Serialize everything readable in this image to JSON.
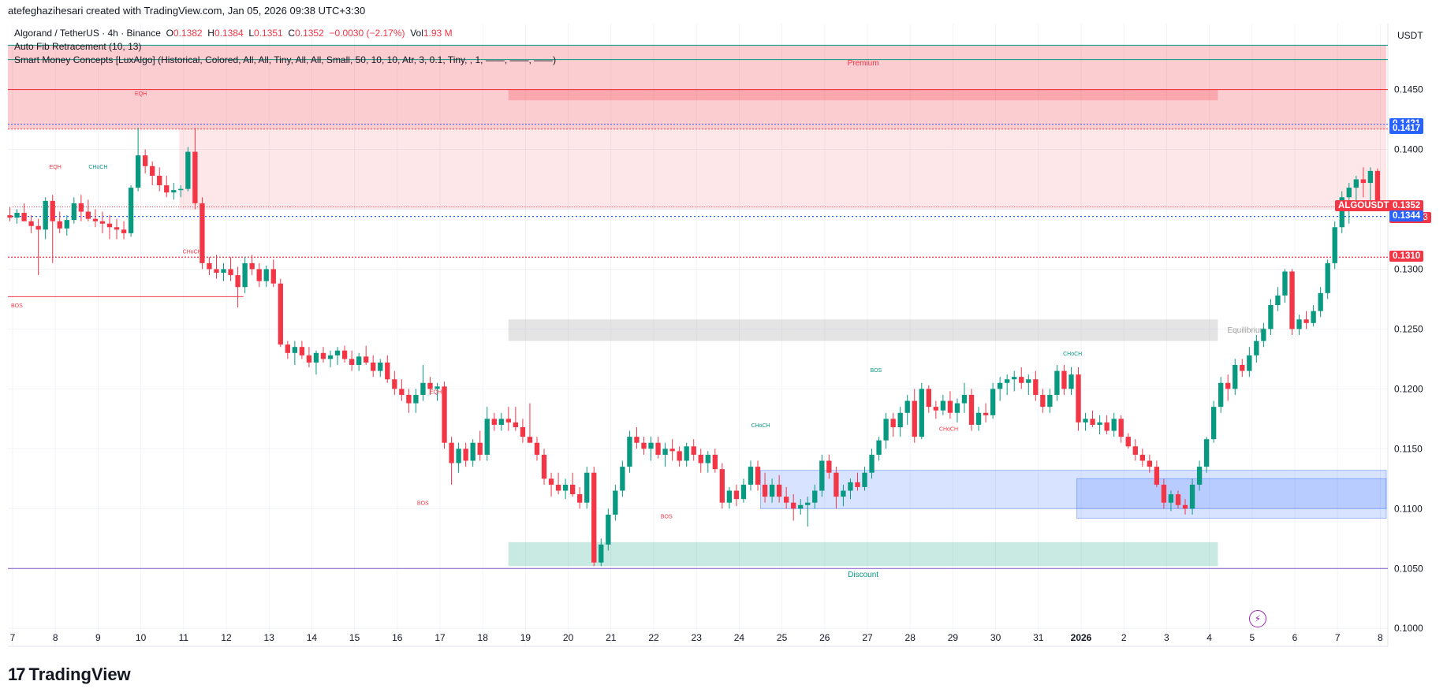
{
  "header": {
    "attribution": "atefeghazihesari created with TradingView.com, Jan 05, 2026 09:38 UTC+3:30",
    "symbol_line": "Algorand / TetherUS · 4h · Binance",
    "ohlc": {
      "o_label": "O",
      "o": "0.1382",
      "h_label": "H",
      "h": "0.1384",
      "l_label": "L",
      "l": "0.1351",
      "c_label": "C",
      "c": "0.1352",
      "change": "−0.0030 (−2.17%)",
      "vol_label": "Vol",
      "vol": "1.93 M"
    },
    "indicator1": "Auto Fib Retracement (10, 13)",
    "indicator2": "Smart Money Concepts [LuxAlgo] (Historical, Colored, All, All, Tiny, All, All, Small, 50, 10, 10, Atr, 3, 0.1, Tiny, , 1, ——, ——, ——)"
  },
  "currency": "USDT",
  "brand": "TradingView",
  "colors": {
    "up": "#089981",
    "down": "#f23645",
    "premium": "#f23645",
    "discount": "#089981",
    "equilibrium": "#9e9e9e",
    "ob_blue": "#2962ff",
    "price_blue": "#2962ff"
  },
  "price_labels": [
    {
      "value": 0.1421,
      "text": "0.1421",
      "color": "#2962ff"
    },
    {
      "value": 0.1417,
      "text": "0.1417",
      "color": "#2962ff"
    },
    {
      "value": 0.1352,
      "text": "0.1352",
      "color": "#f23645",
      "symbol": "ALGOUSDT",
      "countdown": "01:51:23"
    },
    {
      "value": 0.1344,
      "text": "0.1344",
      "color": "#2962ff"
    },
    {
      "value": 0.131,
      "text": "0.1310",
      "color": "#f23645"
    }
  ],
  "chart_data": {
    "type": "candlestick",
    "ylim": [
      0.0985,
      0.1505
    ],
    "y_ticks": [
      "0.1450",
      "0.1400",
      "0.1350",
      "0.1300",
      "0.1250",
      "0.1200",
      "0.1150",
      "0.1100",
      "0.1050",
      "0.1000"
    ],
    "x_ticks": [
      "7",
      "8",
      "9",
      "10",
      "11",
      "12",
      "13",
      "14",
      "15",
      "16",
      "17",
      "18",
      "19",
      "20",
      "21",
      "22",
      "23",
      "24",
      "25",
      "26",
      "27",
      "28",
      "29",
      "30",
      "31",
      "2026",
      "2",
      "3",
      "4",
      "5",
      "6",
      "7",
      "8"
    ],
    "x_start_day": 7,
    "bars_per_day": 6,
    "candles": [
      [
        0.1345,
        0.1352,
        0.134,
        0.1343
      ],
      [
        0.1343,
        0.135,
        0.1338,
        0.1347
      ],
      [
        0.1347,
        0.1355,
        0.1342,
        0.134
      ],
      [
        0.134,
        0.1345,
        0.133,
        0.1336
      ],
      [
        0.1336,
        0.1342,
        0.1295,
        0.1333
      ],
      [
        0.1333,
        0.136,
        0.1325,
        0.1357
      ],
      [
        0.1357,
        0.1362,
        0.1305,
        0.134
      ],
      [
        0.134,
        0.1348,
        0.133,
        0.1334
      ],
      [
        0.1334,
        0.1345,
        0.1328,
        0.1341
      ],
      [
        0.1341,
        0.136,
        0.1338,
        0.1355
      ],
      [
        0.1355,
        0.1362,
        0.134,
        0.1348
      ],
      [
        0.1348,
        0.1358,
        0.134,
        0.1342
      ],
      [
        0.1342,
        0.135,
        0.1335,
        0.134
      ],
      [
        0.134,
        0.1348,
        0.133,
        0.1338
      ],
      [
        0.1338,
        0.1345,
        0.1325,
        0.1335
      ],
      [
        0.1335,
        0.1342,
        0.1325,
        0.1333
      ],
      [
        0.1333,
        0.134,
        0.1325,
        0.133
      ],
      [
        0.133,
        0.137,
        0.1327,
        0.1368
      ],
      [
        0.1368,
        0.1418,
        0.1365,
        0.1395
      ],
      [
        0.1395,
        0.14,
        0.138,
        0.1386
      ],
      [
        0.1386,
        0.139,
        0.137,
        0.1378
      ],
      [
        0.1378,
        0.1385,
        0.1365,
        0.137
      ],
      [
        0.137,
        0.1378,
        0.136,
        0.1364
      ],
      [
        0.1364,
        0.1372,
        0.1358,
        0.1366
      ],
      [
        0.1366,
        0.137,
        0.136,
        0.1367
      ],
      [
        0.1367,
        0.1402,
        0.1365,
        0.1398
      ],
      [
        0.1398,
        0.1418,
        0.135,
        0.1355
      ],
      [
        0.1355,
        0.136,
        0.13,
        0.1305
      ],
      [
        0.1305,
        0.131,
        0.1295,
        0.13
      ],
      [
        0.13,
        0.1312,
        0.1292,
        0.1297
      ],
      [
        0.1297,
        0.1305,
        0.129,
        0.13
      ],
      [
        0.13,
        0.131,
        0.129,
        0.1295
      ],
      [
        0.1295,
        0.1302,
        0.1268,
        0.1285
      ],
      [
        0.1285,
        0.131,
        0.128,
        0.1305
      ],
      [
        0.1305,
        0.1312,
        0.1295,
        0.13
      ],
      [
        0.13,
        0.1305,
        0.1285,
        0.129
      ],
      [
        0.129,
        0.1303,
        0.1285,
        0.13
      ],
      [
        0.13,
        0.1308,
        0.1285,
        0.1288
      ],
      [
        0.1288,
        0.1292,
        0.1235,
        0.1237
      ],
      [
        0.1237,
        0.124,
        0.1225,
        0.123
      ],
      [
        0.123,
        0.124,
        0.122,
        0.1235
      ],
      [
        0.1235,
        0.124,
        0.1225,
        0.1228
      ],
      [
        0.1228,
        0.1235,
        0.1218,
        0.1222
      ],
      [
        0.1222,
        0.1232,
        0.1212,
        0.123
      ],
      [
        0.123,
        0.1235,
        0.1222,
        0.1225
      ],
      [
        0.1225,
        0.1232,
        0.1218,
        0.1228
      ],
      [
        0.1228,
        0.1235,
        0.122,
        0.1232
      ],
      [
        0.1232,
        0.1236,
        0.1222,
        0.1225
      ],
      [
        0.1225,
        0.1232,
        0.1215,
        0.122
      ],
      [
        0.122,
        0.123,
        0.1215,
        0.1227
      ],
      [
        0.1227,
        0.1236,
        0.122,
        0.1222
      ],
      [
        0.1222,
        0.1228,
        0.121,
        0.1215
      ],
      [
        0.1215,
        0.1225,
        0.121,
        0.1222
      ],
      [
        0.1222,
        0.1228,
        0.1205,
        0.1208
      ],
      [
        0.1208,
        0.1215,
        0.1195,
        0.12
      ],
      [
        0.12,
        0.1208,
        0.119,
        0.1195
      ],
      [
        0.1195,
        0.12,
        0.118,
        0.1188
      ],
      [
        0.1188,
        0.12,
        0.118,
        0.1195
      ],
      [
        0.1195,
        0.122,
        0.119,
        0.1205
      ],
      [
        0.1205,
        0.121,
        0.1195,
        0.12
      ],
      [
        0.12,
        0.1205,
        0.119,
        0.1202
      ],
      [
        0.1202,
        0.1206,
        0.115,
        0.1155
      ],
      [
        0.1155,
        0.116,
        0.112,
        0.1138
      ],
      [
        0.1138,
        0.1155,
        0.113,
        0.115
      ],
      [
        0.115,
        0.1155,
        0.1135,
        0.114
      ],
      [
        0.114,
        0.1158,
        0.1135,
        0.1155
      ],
      [
        0.1155,
        0.1165,
        0.114,
        0.1145
      ],
      [
        0.1145,
        0.1185,
        0.114,
        0.1175
      ],
      [
        0.1175,
        0.118,
        0.1165,
        0.117
      ],
      [
        0.117,
        0.118,
        0.1165,
        0.1175
      ],
      [
        0.1175,
        0.1185,
        0.1165,
        0.1172
      ],
      [
        0.1172,
        0.1185,
        0.1165,
        0.1168
      ],
      [
        0.1168,
        0.1175,
        0.1155,
        0.116
      ],
      [
        0.116,
        0.1188,
        0.1155,
        0.1155
      ],
      [
        0.1155,
        0.116,
        0.114,
        0.1145
      ],
      [
        0.1145,
        0.115,
        0.112,
        0.1125
      ],
      [
        0.1125,
        0.113,
        0.111,
        0.112
      ],
      [
        0.112,
        0.113,
        0.1112,
        0.1115
      ],
      [
        0.1115,
        0.1125,
        0.1108,
        0.112
      ],
      [
        0.112,
        0.113,
        0.111,
        0.1112
      ],
      [
        0.1112,
        0.1118,
        0.11,
        0.1105
      ],
      [
        0.1105,
        0.1135,
        0.11,
        0.113
      ],
      [
        0.113,
        0.1135,
        0.1052,
        0.1055
      ],
      [
        0.1055,
        0.1075,
        0.1052,
        0.107
      ],
      [
        0.107,
        0.11,
        0.1065,
        0.1095
      ],
      [
        0.1095,
        0.112,
        0.109,
        0.1115
      ],
      [
        0.1115,
        0.114,
        0.111,
        0.1135
      ],
      [
        0.1135,
        0.1165,
        0.113,
        0.116
      ],
      [
        0.116,
        0.1168,
        0.115,
        0.1155
      ],
      [
        0.1155,
        0.116,
        0.1145,
        0.115
      ],
      [
        0.115,
        0.116,
        0.114,
        0.1155
      ],
      [
        0.1155,
        0.116,
        0.1142,
        0.1145
      ],
      [
        0.1145,
        0.1155,
        0.1135,
        0.115
      ],
      [
        0.115,
        0.1158,
        0.114,
        0.1148
      ],
      [
        0.1148,
        0.1152,
        0.1135,
        0.114
      ],
      [
        0.114,
        0.1155,
        0.1135,
        0.1152
      ],
      [
        0.1152,
        0.1158,
        0.114,
        0.1145
      ],
      [
        0.1145,
        0.115,
        0.113,
        0.1138
      ],
      [
        0.1138,
        0.1148,
        0.113,
        0.1145
      ],
      [
        0.1145,
        0.115,
        0.113,
        0.1133
      ],
      [
        0.1133,
        0.1138,
        0.11,
        0.1105
      ],
      [
        0.1105,
        0.1118,
        0.11,
        0.1115
      ],
      [
        0.1115,
        0.112,
        0.1102,
        0.1108
      ],
      [
        0.1108,
        0.1125,
        0.1105,
        0.112
      ],
      [
        0.112,
        0.114,
        0.1115,
        0.1135
      ],
      [
        0.1135,
        0.114,
        0.1115,
        0.112
      ],
      [
        0.112,
        0.113,
        0.1105,
        0.111
      ],
      [
        0.111,
        0.1125,
        0.1105,
        0.112
      ],
      [
        0.112,
        0.1128,
        0.1105,
        0.111
      ],
      [
        0.111,
        0.1118,
        0.11,
        0.1105
      ],
      [
        0.1105,
        0.1112,
        0.109,
        0.11
      ],
      [
        0.11,
        0.1108,
        0.1095,
        0.1103
      ],
      [
        0.1103,
        0.111,
        0.1085,
        0.1105
      ],
      [
        0.1105,
        0.112,
        0.11,
        0.1115
      ],
      [
        0.1115,
        0.1145,
        0.111,
        0.114
      ],
      [
        0.114,
        0.1145,
        0.1125,
        0.113
      ],
      [
        0.113,
        0.1135,
        0.11,
        0.111
      ],
      [
        0.111,
        0.112,
        0.1102,
        0.1115
      ],
      [
        0.1115,
        0.1125,
        0.1108,
        0.1122
      ],
      [
        0.1122,
        0.113,
        0.1115,
        0.1118
      ],
      [
        0.1118,
        0.1135,
        0.1115,
        0.113
      ],
      [
        0.113,
        0.115,
        0.1125,
        0.1145
      ],
      [
        0.1145,
        0.116,
        0.114,
        0.1157
      ],
      [
        0.1157,
        0.118,
        0.115,
        0.1175
      ],
      [
        0.1175,
        0.118,
        0.116,
        0.1168
      ],
      [
        0.1168,
        0.1185,
        0.116,
        0.118
      ],
      [
        0.118,
        0.1195,
        0.117,
        0.119
      ],
      [
        0.119,
        0.12,
        0.1155,
        0.116
      ],
      [
        0.116,
        0.1205,
        0.1158,
        0.12
      ],
      [
        0.12,
        0.1203,
        0.118,
        0.1185
      ],
      [
        0.1185,
        0.119,
        0.1175,
        0.1182
      ],
      [
        0.1182,
        0.1195,
        0.1178,
        0.119
      ],
      [
        0.119,
        0.1198,
        0.1175,
        0.118
      ],
      [
        0.118,
        0.1192,
        0.1172,
        0.1188
      ],
      [
        0.1188,
        0.1205,
        0.118,
        0.1195
      ],
      [
        0.1195,
        0.12,
        0.1165,
        0.117
      ],
      [
        0.117,
        0.1185,
        0.1165,
        0.118
      ],
      [
        0.118,
        0.1188,
        0.1172,
        0.1178
      ],
      [
        0.1178,
        0.1205,
        0.1175,
        0.12
      ],
      [
        0.12,
        0.121,
        0.119,
        0.1205
      ],
      [
        0.1205,
        0.1212,
        0.1195,
        0.1208
      ],
      [
        0.1208,
        0.1215,
        0.1198,
        0.121
      ],
      [
        0.121,
        0.1218,
        0.12,
        0.1205
      ],
      [
        0.1205,
        0.1212,
        0.1195,
        0.1208
      ],
      [
        0.1208,
        0.1215,
        0.119,
        0.1195
      ],
      [
        0.1195,
        0.12,
        0.118,
        0.1185
      ],
      [
        0.1185,
        0.12,
        0.118,
        0.1195
      ],
      [
        0.1195,
        0.122,
        0.119,
        0.1215
      ],
      [
        0.1215,
        0.122,
        0.1195,
        0.12
      ],
      [
        0.12,
        0.1218,
        0.1195,
        0.1212
      ],
      [
        0.1212,
        0.1218,
        0.1165,
        0.1172
      ],
      [
        0.1172,
        0.118,
        0.1165,
        0.1175
      ],
      [
        0.1175,
        0.1182,
        0.1168,
        0.117
      ],
      [
        0.117,
        0.1178,
        0.1162,
        0.1172
      ],
      [
        0.1172,
        0.1178,
        0.1162,
        0.1165
      ],
      [
        0.1165,
        0.118,
        0.116,
        0.1175
      ],
      [
        0.1175,
        0.1178,
        0.1155,
        0.116
      ],
      [
        0.116,
        0.1163,
        0.115,
        0.1152
      ],
      [
        0.1152,
        0.1158,
        0.114,
        0.1145
      ],
      [
        0.1145,
        0.115,
        0.1135,
        0.114
      ],
      [
        0.114,
        0.1145,
        0.113,
        0.1135
      ],
      [
        0.1135,
        0.114,
        0.1118,
        0.112
      ],
      [
        0.112,
        0.1125,
        0.11,
        0.1105
      ],
      [
        0.1105,
        0.1115,
        0.1098,
        0.1112
      ],
      [
        0.1112,
        0.1115,
        0.11,
        0.1103
      ],
      [
        0.1103,
        0.1108,
        0.1095,
        0.11
      ],
      [
        0.11,
        0.1125,
        0.1095,
        0.112
      ],
      [
        0.112,
        0.114,
        0.1115,
        0.1135
      ],
      [
        0.1135,
        0.116,
        0.113,
        0.1158
      ],
      [
        0.1158,
        0.119,
        0.1155,
        0.1185
      ],
      [
        0.1185,
        0.121,
        0.118,
        0.1205
      ],
      [
        0.1205,
        0.1212,
        0.119,
        0.12
      ],
      [
        0.12,
        0.1225,
        0.1195,
        0.122
      ],
      [
        0.122,
        0.1225,
        0.121,
        0.1215
      ],
      [
        0.1215,
        0.1235,
        0.121,
        0.1228
      ],
      [
        0.1228,
        0.1245,
        0.1222,
        0.124
      ],
      [
        0.124,
        0.1255,
        0.1235,
        0.125
      ],
      [
        0.125,
        0.1275,
        0.1245,
        0.127
      ],
      [
        0.127,
        0.1285,
        0.1265,
        0.1278
      ],
      [
        0.1278,
        0.13,
        0.1272,
        0.1298
      ],
      [
        0.1298,
        0.13,
        0.1245,
        0.125
      ],
      [
        0.125,
        0.1262,
        0.1245,
        0.1258
      ],
      [
        0.1258,
        0.1265,
        0.125,
        0.1255
      ],
      [
        0.1255,
        0.127,
        0.1252,
        0.1265
      ],
      [
        0.1265,
        0.1285,
        0.126,
        0.128
      ],
      [
        0.128,
        0.1308,
        0.1275,
        0.1305
      ],
      [
        0.1305,
        0.134,
        0.13,
        0.1335
      ],
      [
        0.1335,
        0.1365,
        0.133,
        0.136
      ],
      [
        0.136,
        0.1372,
        0.1338,
        0.1368
      ],
      [
        0.1368,
        0.1378,
        0.1355,
        0.1375
      ],
      [
        0.1375,
        0.1385,
        0.136,
        0.1372
      ],
      [
        0.1372,
        0.1385,
        0.1355,
        0.1382
      ],
      [
        0.1382,
        0.1384,
        0.1351,
        0.1352
      ]
    ],
    "zones": {
      "premium_label": "Premium",
      "equilibrium_label": "Equilibrium",
      "discount_label": "Discount"
    },
    "annotations": [
      {
        "text": "EQH",
        "color": "#f23645",
        "day": 10.0,
        "price": 0.1445
      },
      {
        "text": "EQH",
        "color": "#f23645",
        "day": 8.0,
        "price": 0.1384
      },
      {
        "text": "CHoCH",
        "color": "#089981",
        "day": 9.0,
        "price": 0.1384
      },
      {
        "text": "CHoCH",
        "color": "#f23645",
        "day": 11.2,
        "price": 0.1313
      },
      {
        "text": "BOS",
        "color": "#f23645",
        "day": 7.1,
        "price": 0.1268
      },
      {
        "text": "EQH",
        "color": "#f23645",
        "day": 16.9,
        "price": 0.1196
      },
      {
        "text": "BOS",
        "color": "#f23645",
        "day": 16.6,
        "price": 0.1103
      },
      {
        "text": "BOS",
        "color": "#f23645",
        "day": 22.3,
        "price": 0.1092
      },
      {
        "text": "CHoCH",
        "color": "#089981",
        "day": 24.5,
        "price": 0.1168
      },
      {
        "text": "BOS",
        "color": "#089981",
        "day": 27.2,
        "price": 0.1214
      },
      {
        "text": "CHoCH",
        "color": "#f23645",
        "day": 28.9,
        "price": 0.1165
      },
      {
        "text": "CHoCH",
        "color": "#089981",
        "day": 31.8,
        "price": 0.1228
      }
    ]
  }
}
